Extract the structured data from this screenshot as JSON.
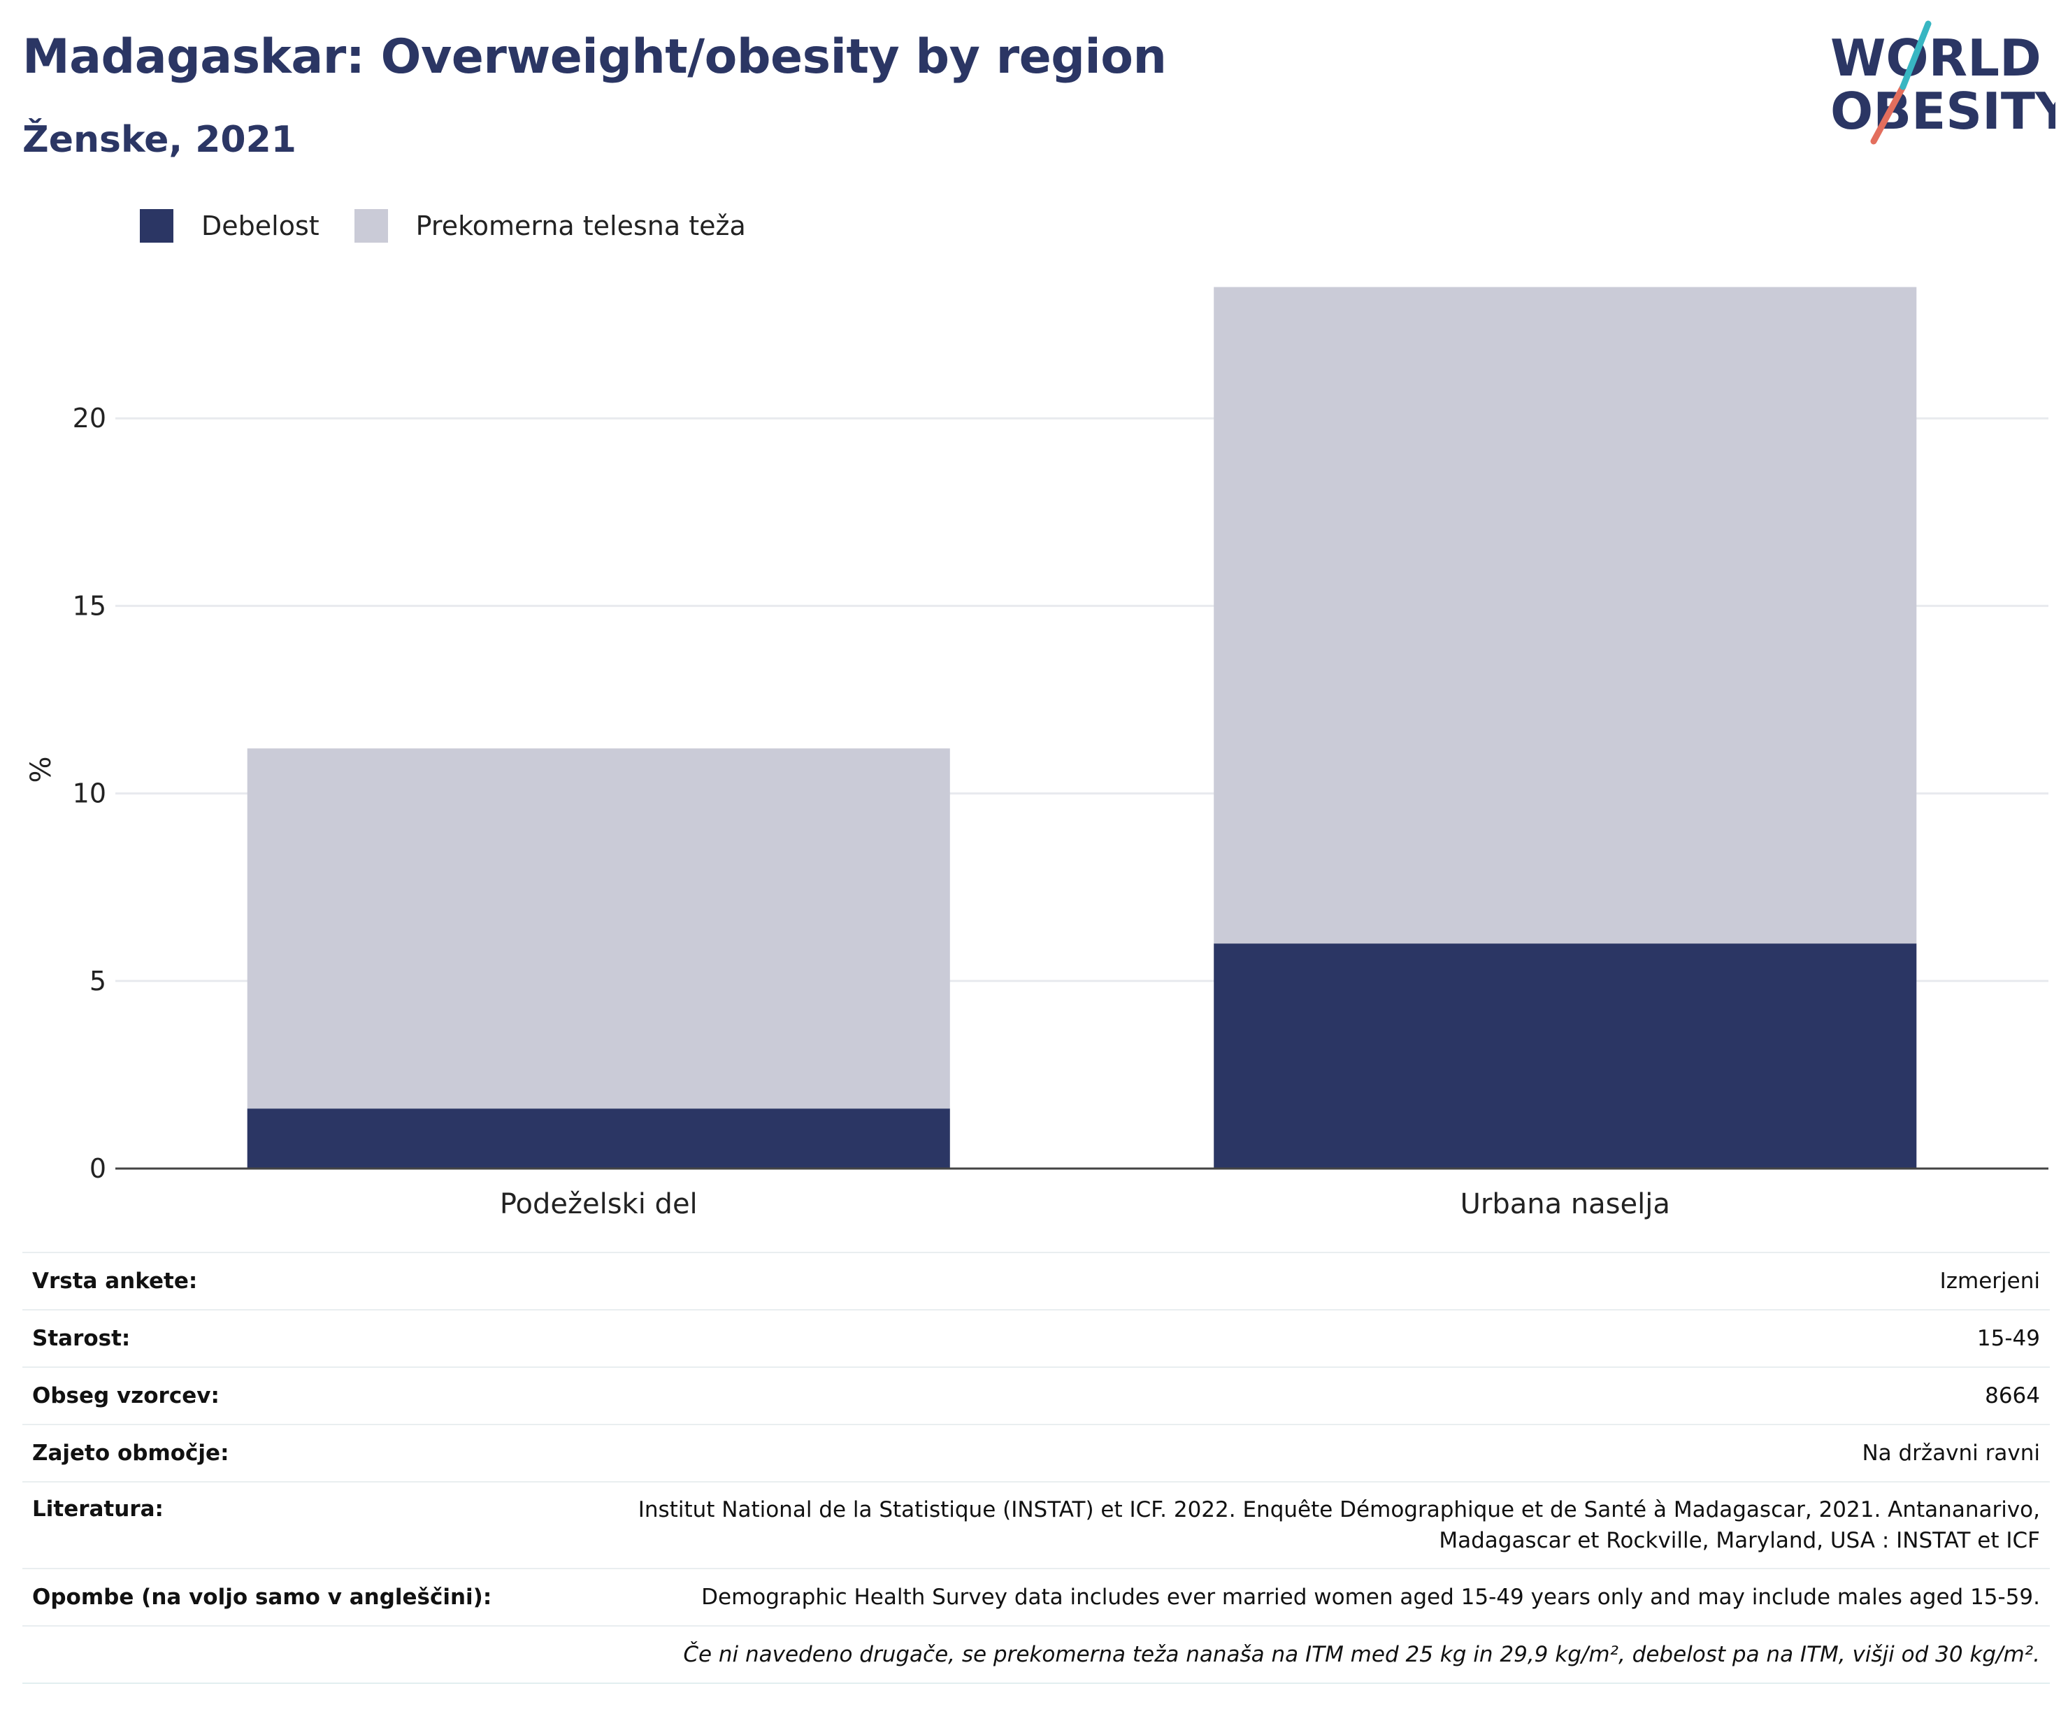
{
  "header": {
    "title": "Madagaskar: Overweight/obesity by region",
    "subtitle": "Ženske, 2021"
  },
  "logo": {
    "line1": "WORLD",
    "line2": "OBESITY",
    "accent_teal": "#38b6c2",
    "accent_coral": "#e36e5d",
    "color": "#2b3664"
  },
  "legend": [
    {
      "label": "Debelost",
      "color": "#2b3664"
    },
    {
      "label": "Prekomerna telesna teža",
      "color": "#cacbd7"
    }
  ],
  "chart_data": {
    "type": "bar",
    "stacked": true,
    "categories": [
      "Podeželski del",
      "Urbana naselja"
    ],
    "series": [
      {
        "name": "Debelost",
        "values": [
          1.6,
          6.0
        ],
        "color": "#2b3664"
      },
      {
        "name": "Prekomerna telesna teža",
        "values": [
          9.6,
          17.5
        ],
        "color": "#cacbd7"
      }
    ],
    "ylabel": "%",
    "ylim": [
      0,
      25
    ],
    "yticks": [
      0,
      5,
      10,
      15,
      20
    ],
    "grid": true,
    "legend_position": "top-left"
  },
  "info": [
    {
      "key": "Vrsta ankete:",
      "value": "Izmerjeni"
    },
    {
      "key": "Starost:",
      "value": "15-49"
    },
    {
      "key": "Obseg vzorcev:",
      "value": "8664"
    },
    {
      "key": "Zajeto območje:",
      "value": "Na državni ravni"
    },
    {
      "key": "Literatura:",
      "value": "Institut National de la Statistique (INSTAT) et ICF. 2022. Enquête Démographique et de Santé à Madagascar, 2021. Antananarivo,",
      "value2": "Madagascar et Rockville, Maryland, USA : INSTAT et ICF"
    },
    {
      "key": "Opombe (na voljo samo v angleščini):",
      "value": "Demographic Health Survey data includes ever married women aged 15-49 years only and may include males aged 15-59."
    },
    {
      "key": "",
      "value": "Če ni navedeno drugače, se prekomerna teža nanaša na ITM med 25 kg in 29,9 kg/m², debelost pa na ITM, višji od 30 kg/m²."
    }
  ]
}
